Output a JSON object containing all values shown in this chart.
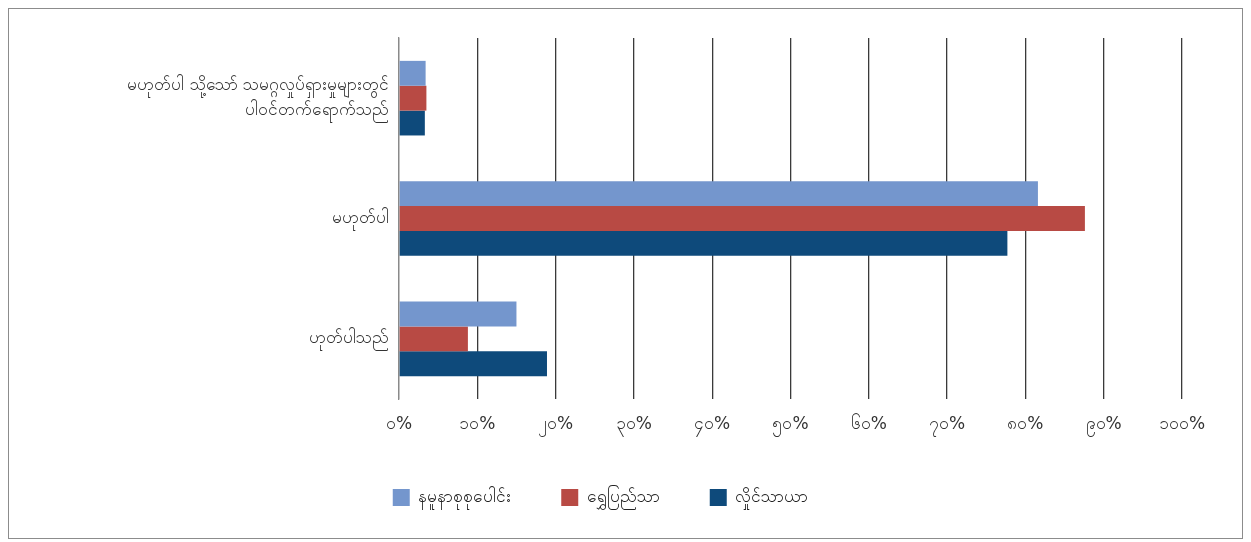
{
  "chart_data": {
    "type": "bar",
    "orientation": "horizontal",
    "categories": [
      "မဟုတ်ပါ သို့သော် သမဂ္ဂလှုပ်ရှားမှုများတွင် ပါဝင်တက်ရောက်သည်",
      "မဟုတ်ပါ",
      "ဟုတ်ပါသည်"
    ],
    "series": [
      {
        "name": "နမူနာစုစုပေါင်း",
        "color": "#7496cd",
        "values": [
          3.4,
          81.6,
          15.0
        ]
      },
      {
        "name": "ရွှေပြည်သာ",
        "color": "#b84a44",
        "values": [
          3.5,
          87.6,
          8.8
        ]
      },
      {
        "name": "လှိုင်သာယာ",
        "color": "#0e4a7b",
        "values": [
          3.3,
          77.7,
          18.9
        ]
      }
    ],
    "xlim": [
      0,
      100
    ],
    "xticks": [
      {
        "value": 0,
        "label": "၀%"
      },
      {
        "value": 10,
        "label": "၁၀%"
      },
      {
        "value": 20,
        "label": "၂၀%"
      },
      {
        "value": 30,
        "label": "၃၀%"
      },
      {
        "value": 40,
        "label": "၄၀%"
      },
      {
        "value": 50,
        "label": "၅၀%"
      },
      {
        "value": 60,
        "label": "၆၀%"
      },
      {
        "value": 70,
        "label": "၇၀%"
      },
      {
        "value": 80,
        "label": "၈၀%"
      },
      {
        "value": 90,
        "label": "၉၀%"
      },
      {
        "value": 100,
        "label": "၁၀၀%"
      }
    ],
    "grid": "x",
    "legend": "bottom"
  }
}
